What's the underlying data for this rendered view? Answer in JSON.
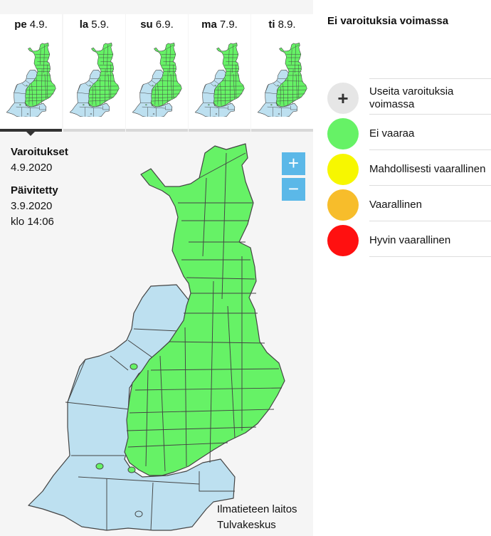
{
  "days": [
    {
      "weekday": "pe",
      "date": "4.9.",
      "active": true
    },
    {
      "weekday": "la",
      "date": "5.9.",
      "active": false
    },
    {
      "weekday": "su",
      "date": "6.9.",
      "active": false
    },
    {
      "weekday": "ma",
      "date": "7.9.",
      "active": false
    },
    {
      "weekday": "ti",
      "date": "8.9.",
      "active": false
    }
  ],
  "info": {
    "warnings_heading": "Varoitukset",
    "warnings_date": "4.9.2020",
    "updated_heading": "Päivitetty",
    "updated_date": "3.9.2020",
    "updated_time": "klo 14:06"
  },
  "zoom": {
    "in": "+",
    "out": "−"
  },
  "credits": {
    "line1": "Ilmatieteen laitos",
    "line2": "Tulvakeskus"
  },
  "status_title": "Ei varoituksia voimassa",
  "legend": [
    {
      "label": "Useita varoituksia voimassa",
      "color": "#e6e6e6",
      "icon": "plus-icon"
    },
    {
      "label": "Ei vaaraa",
      "color": "#66f266"
    },
    {
      "label": "Mahdollisesti vaarallinen",
      "color": "#f7f700"
    },
    {
      "label": "Vaarallinen",
      "color": "#f7bd2b"
    },
    {
      "label": "Hyvin vaarallinen",
      "color": "#ff1010"
    }
  ],
  "map_colors": {
    "land": "#66f266",
    "sea": "#bde0f0",
    "border": "#444444"
  }
}
